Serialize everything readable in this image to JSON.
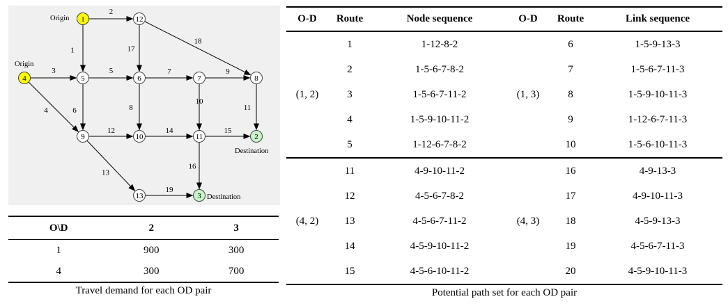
{
  "network": {
    "nodes": [
      {
        "id": "1",
        "color": "#ffff00"
      },
      {
        "id": "2",
        "color": "#c8f5c8"
      },
      {
        "id": "3",
        "color": "#c8f5c8"
      },
      {
        "id": "4",
        "color": "#ffff00"
      },
      {
        "id": "5",
        "color": "#ffffff"
      },
      {
        "id": "6",
        "color": "#ffffff"
      },
      {
        "id": "7",
        "color": "#ffffff"
      },
      {
        "id": "8",
        "color": "#ffffff"
      },
      {
        "id": "9",
        "color": "#ffffff"
      },
      {
        "id": "10",
        "color": "#ffffff"
      },
      {
        "id": "11",
        "color": "#ffffff"
      },
      {
        "id": "12",
        "color": "#ffffff"
      },
      {
        "id": "13",
        "color": "#ffffff"
      }
    ],
    "edges": [
      {
        "label": "1",
        "from": "1",
        "to": "5"
      },
      {
        "label": "2",
        "from": "1",
        "to": "12"
      },
      {
        "label": "3",
        "from": "4",
        "to": "5"
      },
      {
        "label": "4",
        "from": "4",
        "to": "9"
      },
      {
        "label": "5",
        "from": "5",
        "to": "6"
      },
      {
        "label": "6",
        "from": "5",
        "to": "9"
      },
      {
        "label": "7",
        "from": "6",
        "to": "7"
      },
      {
        "label": "8",
        "from": "6",
        "to": "10"
      },
      {
        "label": "9",
        "from": "7",
        "to": "8"
      },
      {
        "label": "10",
        "from": "7",
        "to": "11"
      },
      {
        "label": "11",
        "from": "8",
        "to": "2"
      },
      {
        "label": "12",
        "from": "9",
        "to": "10"
      },
      {
        "label": "13",
        "from": "9",
        "to": "13"
      },
      {
        "label": "14",
        "from": "10",
        "to": "11"
      },
      {
        "label": "15",
        "from": "11",
        "to": "2"
      },
      {
        "label": "16",
        "from": "11",
        "to": "3"
      },
      {
        "label": "17",
        "from": "12",
        "to": "6"
      },
      {
        "label": "18",
        "from": "12",
        "to": "8"
      },
      {
        "label": "19",
        "from": "13",
        "to": "3"
      }
    ],
    "annotations": {
      "origin_1": "Origin",
      "origin_4": "Origin",
      "destination_2": "Destination",
      "destination_3": "Destination"
    }
  },
  "demand_table": {
    "headers": [
      "O\\D",
      "2",
      "3"
    ],
    "rows": [
      [
        "1",
        "900",
        "300"
      ],
      [
        "4",
        "300",
        "700"
      ]
    ],
    "caption": "Travel demand for each OD pair"
  },
  "path_table": {
    "headers": [
      "O-D",
      "Route",
      "Node sequence",
      "O-D",
      "Route",
      "Link sequence"
    ],
    "groups": [
      {
        "od_left": "(1, 2)",
        "od_right": "(1, 3)",
        "rows": [
          {
            "route_left": "1",
            "seq_left": "1-12-8-2",
            "route_right": "6",
            "seq_right": "1-5-9-13-3"
          },
          {
            "route_left": "2",
            "seq_left": "1-5-6-7-8-2",
            "route_right": "7",
            "seq_right": "1-5-6-7-11-3"
          },
          {
            "route_left": "3",
            "seq_left": "1-5-6-7-11-2",
            "route_right": "8",
            "seq_right": "1-5-9-10-11-3"
          },
          {
            "route_left": "4",
            "seq_left": "1-5-9-10-11-2",
            "route_right": "9",
            "seq_right": "1-12-6-7-11-3"
          },
          {
            "route_left": "5",
            "seq_left": "1-12-6-7-8-2",
            "route_right": "10",
            "seq_right": "1-5-6-10-11-3"
          }
        ]
      },
      {
        "od_left": "(4, 2)",
        "od_right": "(4, 3)",
        "rows": [
          {
            "route_left": "11",
            "seq_left": "4-9-10-11-2",
            "route_right": "16",
            "seq_right": "4-9-13-3"
          },
          {
            "route_left": "12",
            "seq_left": "4-5-6-7-8-2",
            "route_right": "17",
            "seq_right": "4-9-10-11-3"
          },
          {
            "route_left": "13",
            "seq_left": "4-5-6-7-11-2",
            "route_right": "18",
            "seq_right": "4-5-9-13-3"
          },
          {
            "route_left": "14",
            "seq_left": "4-5-9-10-11-2",
            "route_right": "19",
            "seq_right": "4-5-6-7-11-3"
          },
          {
            "route_left": "15",
            "seq_left": "4-5-6-10-11-2",
            "route_right": "20",
            "seq_right": "4-5-9-10-11-3"
          }
        ]
      }
    ],
    "caption": "Potential path set for each OD pair"
  }
}
